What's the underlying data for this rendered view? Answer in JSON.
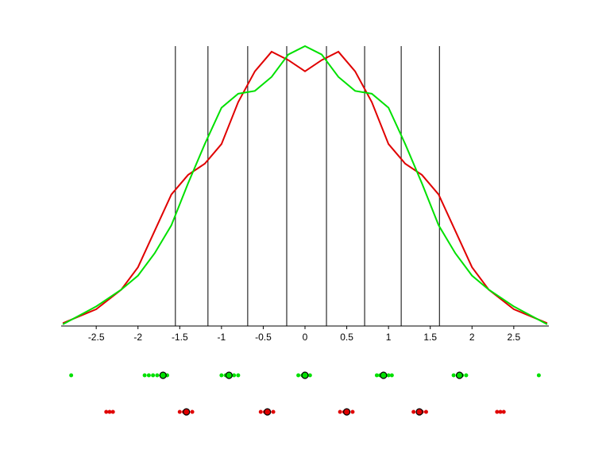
{
  "chart_data": {
    "type": "line",
    "x": [
      -2.9,
      -2.5,
      -2.2,
      -2.0,
      -1.8,
      -1.6,
      -1.4,
      -1.2,
      -1.0,
      -0.8,
      -0.6,
      -0.4,
      -0.2,
      0,
      0.2,
      0.4,
      0.6,
      0.8,
      1.0,
      1.2,
      1.4,
      1.6,
      1.8,
      2.0,
      2.2,
      2.5,
      2.9
    ],
    "series": [
      {
        "color": "#e00000",
        "values": [
          0.01,
          0.06,
          0.13,
          0.21,
          0.34,
          0.47,
          0.54,
          0.58,
          0.65,
          0.8,
          0.91,
          0.98,
          0.95,
          0.91,
          0.95,
          0.98,
          0.91,
          0.8,
          0.65,
          0.58,
          0.54,
          0.47,
          0.34,
          0.21,
          0.13,
          0.06,
          0.01
        ]
      },
      {
        "color": "#00e000",
        "values": [
          0.006,
          0.07,
          0.13,
          0.18,
          0.26,
          0.36,
          0.51,
          0.65,
          0.78,
          0.83,
          0.84,
          0.89,
          0.97,
          1.0,
          0.97,
          0.89,
          0.84,
          0.83,
          0.78,
          0.65,
          0.51,
          0.36,
          0.26,
          0.18,
          0.13,
          0.07,
          0.006
        ]
      }
    ],
    "vlines": [
      -1.552,
      -1.162,
      -0.686,
      -0.219,
      0.257,
      0.714,
      1.152,
      1.61
    ],
    "xlim": [
      -2.92,
      2.92
    ],
    "ylim": [
      0,
      1
    ],
    "xticks": [
      -2.5,
      -2,
      -1.5,
      -1,
      -0.5,
      0,
      0.5,
      1,
      1.5,
      2,
      2.5
    ],
    "dot_rows": [
      {
        "color": "#00e000",
        "points": [
          -2.8,
          -1.92,
          -1.87,
          -1.82,
          -1.77,
          -1.72,
          -1.65,
          -1.0,
          -0.95,
          -0.9,
          -0.85,
          -0.8,
          -0.08,
          -0.03,
          0.02,
          0.06,
          0.86,
          0.9,
          0.95,
          1.0,
          1.04,
          1.78,
          1.83,
          1.88,
          1.93,
          2.8
        ],
        "centers": [
          -1.7,
          -0.91,
          0,
          0.94,
          1.85
        ]
      },
      {
        "color": "#e00000",
        "points": [
          -2.38,
          -2.34,
          -2.3,
          -1.5,
          -1.45,
          -1.4,
          -1.35,
          -0.53,
          -0.48,
          -0.43,
          -0.38,
          0.42,
          0.47,
          0.52,
          0.57,
          1.3,
          1.35,
          1.4,
          1.45,
          2.3,
          2.34,
          2.38
        ],
        "centers": [
          -1.42,
          -0.45,
          0.5,
          1.37
        ]
      }
    ]
  }
}
